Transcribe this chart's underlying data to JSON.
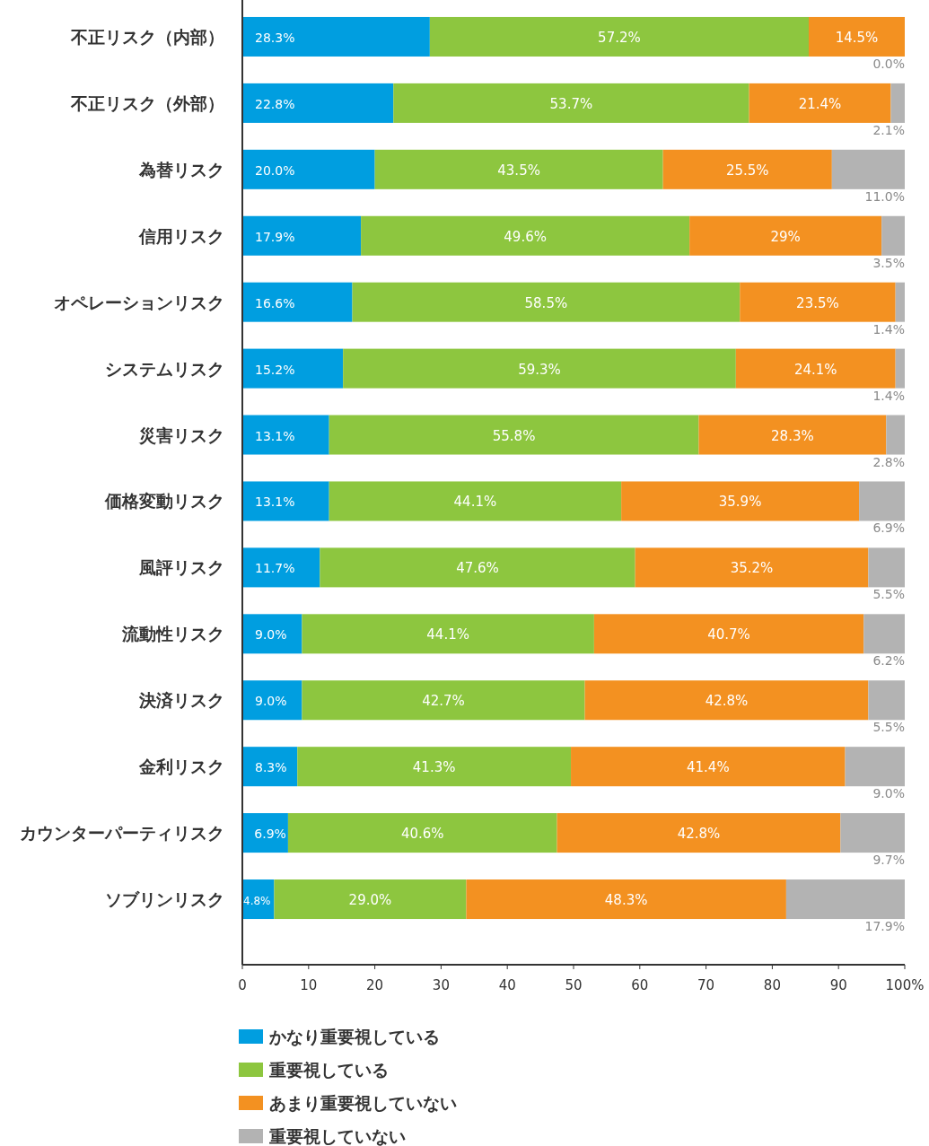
{
  "chart_data": {
    "type": "bar",
    "orientation": "horizontal",
    "stacked": true,
    "categories": [
      "不正リスク（内部）",
      "不正リスク（外部）",
      "為替リスク",
      "信用リスク",
      "オペレーションリスク",
      "システムリスク",
      "災害リスク",
      "価格変動リスク",
      "風評リスク",
      "流動性リスク",
      "決済リスク",
      "金利リスク",
      "カウンターパーティリスク",
      "ソブリンリスク"
    ],
    "series": [
      {
        "name": "かなり重要視している",
        "color": "#009ee0",
        "values": [
          28.3,
          22.8,
          20.0,
          17.9,
          16.6,
          15.2,
          13.1,
          13.1,
          11.7,
          9.0,
          9.0,
          8.3,
          6.9,
          4.8
        ],
        "value_labels": [
          "28.3%",
          "22.8%",
          "20.0%",
          "17.9%",
          "16.6%",
          "15.2%",
          "13.1%",
          "13.1%",
          "11.7%",
          "9.0%",
          "9.0%",
          "8.3%",
          "6.9%",
          "4.8%"
        ]
      },
      {
        "name": "重要視している",
        "color": "#8dc63f",
        "values": [
          57.2,
          53.7,
          43.5,
          49.6,
          58.5,
          59.3,
          55.8,
          44.1,
          47.6,
          44.1,
          42.7,
          41.3,
          40.6,
          29.0
        ],
        "value_labels": [
          "57.2%",
          "53.7%",
          "43.5%",
          "49.6%",
          "58.5%",
          "59.3%",
          "55.8%",
          "44.1%",
          "47.6%",
          "44.1%",
          "42.7%",
          "41.3%",
          "40.6%",
          "29.0%"
        ]
      },
      {
        "name": "あまり重要視していない",
        "color": "#f39121",
        "values": [
          14.5,
          21.4,
          25.5,
          29,
          23.5,
          24.1,
          28.3,
          35.9,
          35.2,
          40.7,
          42.8,
          41.4,
          42.8,
          48.3
        ],
        "value_labels": [
          "14.5%",
          "21.4%",
          "25.5%",
          "29%",
          "23.5%",
          "24.1%",
          "28.3%",
          "35.9%",
          "35.2%",
          "40.7%",
          "42.8%",
          "41.4%",
          "42.8%",
          "48.3%"
        ]
      },
      {
        "name": "重要視していない",
        "color": "#b3b3b3",
        "values": [
          0.0,
          2.1,
          11.0,
          3.5,
          1.4,
          1.4,
          2.8,
          6.9,
          5.5,
          6.2,
          5.5,
          9.0,
          9.7,
          17.9
        ],
        "value_labels": [
          "0.0%",
          "2.1%",
          "11.0%",
          "3.5%",
          "1.4%",
          "1.4%",
          "2.8%",
          "6.9%",
          "5.5%",
          "6.2%",
          "5.5%",
          "9.0%",
          "9.7%",
          "17.9%"
        ]
      }
    ],
    "xlim": [
      0,
      100
    ],
    "xticks": [
      0,
      10,
      20,
      30,
      40,
      50,
      60,
      70,
      80,
      90,
      {
        "value": 100,
        "label": "100%"
      }
    ],
    "grid": false,
    "legend": "bottom"
  }
}
